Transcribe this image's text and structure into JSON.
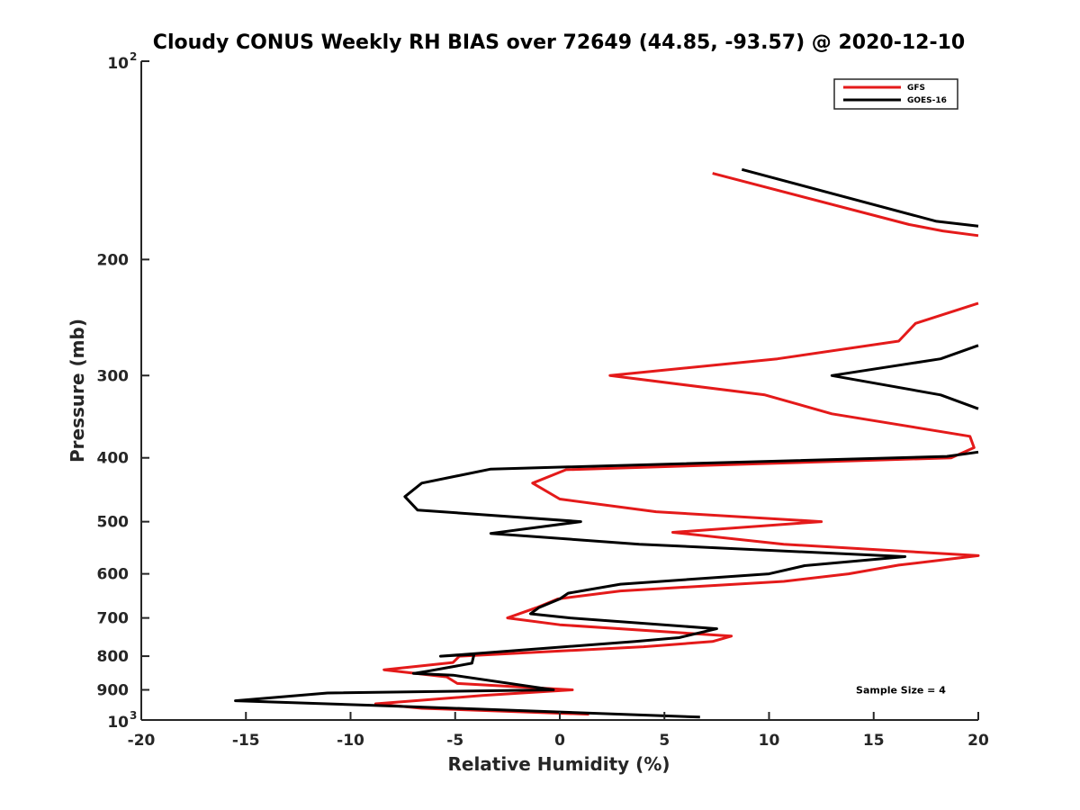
{
  "chart_data": {
    "type": "line",
    "title": "Cloudy CONUS Weekly RH BIAS over 72649 (44.85, -93.57) @ 2020-12-10",
    "xlabel": "Relative Humidity (%)",
    "ylabel": "Pressure (mb)",
    "xlim": [
      -20,
      20
    ],
    "ylim": [
      100,
      1000
    ],
    "yscale": "log",
    "y_reversed": true,
    "grid": false,
    "legend_position": "top-right",
    "x_ticks": [
      "-20",
      "-15",
      "-10",
      "-5",
      "0",
      "5",
      "10",
      "15",
      "20"
    ],
    "y_ticks": [
      {
        "value": 100,
        "label": "10",
        "exp": "2"
      },
      {
        "value": 200,
        "label": "200"
      },
      {
        "value": 300,
        "label": "300"
      },
      {
        "value": 400,
        "label": "400"
      },
      {
        "value": 500,
        "label": "500"
      },
      {
        "value": 600,
        "label": "600"
      },
      {
        "value": 700,
        "label": "700"
      },
      {
        "value": 800,
        "label": "800"
      },
      {
        "value": 900,
        "label": "900"
      },
      {
        "value": 1000,
        "label": "10",
        "exp": "3"
      }
    ],
    "series": [
      {
        "name": "GFS",
        "color": "#e41a1a",
        "segments": [
          [
            [
              7.3,
              148
            ],
            [
              16.7,
              177
            ],
            [
              18.3,
              181
            ],
            [
              20,
              184
            ]
          ],
          [
            [
              20,
              233
            ],
            [
              17,
              250
            ],
            [
              16.2,
              266
            ],
            [
              10.4,
              283
            ],
            [
              2.4,
              300
            ],
            [
              9.8,
              321
            ],
            [
              13,
              343
            ],
            [
              19.6,
              371
            ],
            [
              19.8,
              386
            ],
            [
              18.7,
              400
            ],
            [
              0.3,
              417
            ],
            [
              -1.3,
              437
            ],
            [
              0,
              462
            ],
            [
              4.6,
              483
            ],
            [
              12.5,
              500
            ],
            [
              5.4,
              519
            ],
            [
              10.7,
              541
            ],
            [
              20,
              563
            ],
            [
              16.2,
              582
            ],
            [
              13.8,
              600
            ],
            [
              10.7,
              616
            ],
            [
              2.9,
              637
            ],
            [
              -0.1,
              655
            ],
            [
              -1.1,
              675
            ],
            [
              -2.5,
              700
            ],
            [
              0,
              717
            ],
            [
              8.2,
              746
            ],
            [
              7.3,
              760
            ],
            [
              4,
              774
            ],
            [
              -4.8,
              800
            ],
            [
              -5.1,
              818
            ],
            [
              -8.4,
              839
            ],
            [
              -5.4,
              860
            ],
            [
              -4.9,
              880
            ],
            [
              0.6,
              900
            ],
            [
              -3.7,
              918
            ],
            [
              -8.8,
              945
            ],
            [
              -6.6,
              960
            ],
            [
              1.4,
              980
            ]
          ]
        ]
      },
      {
        "name": "GOES-16",
        "color": "#000000",
        "segments": [
          [
            [
              8.7,
              146
            ],
            [
              18,
              175
            ],
            [
              20,
              178
            ]
          ],
          [
            [
              20,
              270
            ],
            [
              18.2,
              283
            ],
            [
              13,
              300
            ],
            [
              18.2,
              321
            ],
            [
              20,
              337
            ]
          ],
          [
            [
              20,
              392
            ],
            [
              18.5,
              398
            ],
            [
              -3.3,
              416
            ],
            [
              -6.6,
              437
            ],
            [
              -7.4,
              458
            ],
            [
              -6.8,
              480
            ],
            [
              1,
              500
            ],
            [
              -3.3,
              521
            ],
            [
              3.8,
              541
            ],
            [
              16.5,
              565
            ],
            [
              11.7,
              583
            ],
            [
              10,
              600
            ],
            [
              2.9,
              622
            ],
            [
              0.4,
              642
            ],
            [
              0,
              655
            ],
            [
              -1,
              675
            ],
            [
              -1.4,
              690
            ],
            [
              0.5,
              700
            ],
            [
              7.5,
              727
            ],
            [
              5.7,
              750
            ],
            [
              3.6,
              760
            ],
            [
              -5.7,
              800
            ],
            [
              -4.1,
              795
            ],
            [
              -4.2,
              820
            ],
            [
              -6.3,
              843
            ],
            [
              -7,
              850
            ],
            [
              -5.1,
              855
            ],
            [
              -0.3,
              900
            ],
            [
              -11.1,
              910
            ],
            [
              -15.5,
              935
            ],
            [
              -8.9,
              950
            ],
            [
              6.7,
              990
            ]
          ]
        ]
      }
    ],
    "annotations": [
      {
        "text": "Sample Size = 4",
        "x": 16.3,
        "y": 900
      }
    ]
  }
}
